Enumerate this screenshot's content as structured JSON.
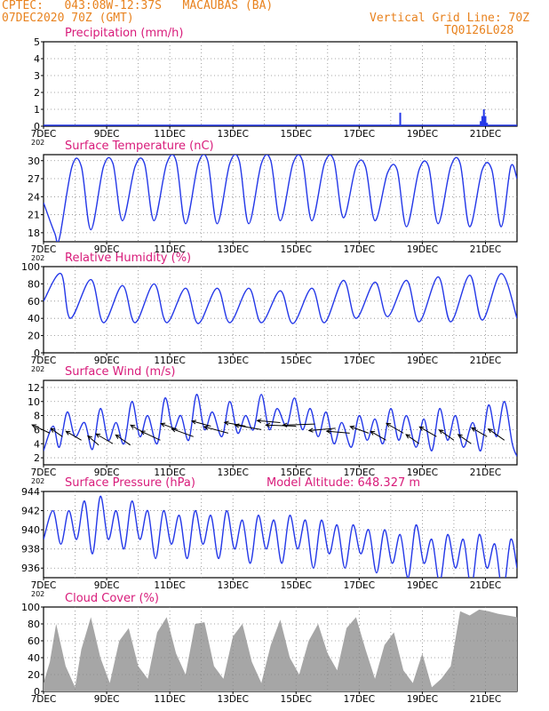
{
  "header": {
    "line1": "CPTEC:   043:08W-12:37S   MACAUBAS (BA)",
    "line2": "07DEC2020 70Z (GMT)",
    "grid_note": "Vertical Grid Line: 70Z",
    "code": "TQ0126L028"
  },
  "colors": {
    "header": "#e8821e",
    "title": "#d81b7a",
    "line": "#2438e8",
    "cloud": "#a6a6a6",
    "arrow": "#000000"
  },
  "x_tick_labels": [
    "7DEC",
    "9DEC",
    "11DEC",
    "13DEC",
    "15DEC",
    "17DEC",
    "19DEC",
    "21DEC"
  ],
  "x_stub_label": "202",
  "chart_data": [
    {
      "id": "precip",
      "type": "bar",
      "title": "Precipitation (mm/h)",
      "xlim": [
        0,
        15
      ],
      "ylim": [
        0,
        5
      ],
      "yticks": [
        0,
        1,
        2,
        3,
        4,
        5
      ],
      "grid": true,
      "x": [
        11.3,
        13.85,
        13.9,
        13.95,
        14.0,
        14.05
      ],
      "values": [
        0.8,
        0.3,
        0.6,
        1.0,
        0.6,
        0.2
      ]
    },
    {
      "id": "temp",
      "type": "line",
      "title": "Surface Temperature (nC)",
      "xlim": [
        0,
        15
      ],
      "ylim": [
        16.5,
        31
      ],
      "yticks": [
        18,
        21,
        24,
        27,
        30
      ],
      "grid": true,
      "x": [
        0,
        0.35,
        0.5,
        0.9,
        1.2,
        1.5,
        1.9,
        2.2,
        2.5,
        2.9,
        3.2,
        3.5,
        3.9,
        4.2,
        4.5,
        4.9,
        5.2,
        5.5,
        5.9,
        6.2,
        6.5,
        6.9,
        7.2,
        7.5,
        7.9,
        8.2,
        8.5,
        8.9,
        9.2,
        9.5,
        9.9,
        10.2,
        10.5,
        10.9,
        11.2,
        11.5,
        11.9,
        12.2,
        12.5,
        12.9,
        13.2,
        13.5,
        13.9,
        14.2,
        14.5,
        14.8,
        15
      ],
      "values": [
        23,
        18,
        17,
        29,
        29,
        18.5,
        29,
        29.5,
        20,
        29,
        29.5,
        20,
        29.5,
        30,
        19.5,
        29.5,
        30,
        19.5,
        29.5,
        30,
        19.5,
        29.5,
        30,
        20,
        29.5,
        30,
        20,
        29.5,
        30,
        20.5,
        29,
        29,
        20,
        28,
        28.5,
        19,
        28.5,
        29,
        19.5,
        29,
        29.5,
        19,
        28.5,
        28.5,
        19,
        29,
        27
      ]
    },
    {
      "id": "rh",
      "type": "line",
      "title": "Relative Humidity (%)",
      "xlim": [
        0,
        15
      ],
      "ylim": [
        0,
        100
      ],
      "yticks": [
        0,
        20,
        40,
        60,
        80,
        100
      ],
      "grid": true,
      "x": [
        0,
        0.55,
        0.85,
        1.5,
        1.9,
        2.5,
        2.9,
        3.5,
        3.9,
        4.5,
        4.9,
        5.5,
        5.9,
        6.5,
        6.9,
        7.5,
        7.9,
        8.5,
        8.9,
        9.5,
        9.9,
        10.5,
        10.9,
        11.5,
        11.9,
        12.5,
        12.9,
        13.5,
        13.9,
        14.5,
        15
      ],
      "values": [
        60,
        92,
        40,
        85,
        35,
        78,
        35,
        80,
        35,
        75,
        34,
        75,
        35,
        75,
        35,
        72,
        34,
        75,
        35,
        84,
        40,
        82,
        42,
        84,
        36,
        88,
        36,
        90,
        38,
        92,
        40
      ]
    },
    {
      "id": "wind",
      "type": "line",
      "title": "Surface Wind (m/s)",
      "xlim": [
        0,
        15
      ],
      "ylim": [
        1,
        13
      ],
      "yticks": [
        2,
        4,
        6,
        8,
        10,
        12
      ],
      "grid": true,
      "x": [
        0,
        0.3,
        0.5,
        0.75,
        1.0,
        1.3,
        1.55,
        1.8,
        2.05,
        2.3,
        2.55,
        2.8,
        3.05,
        3.3,
        3.6,
        3.85,
        4.1,
        4.35,
        4.6,
        4.85,
        5.1,
        5.35,
        5.65,
        5.9,
        6.15,
        6.4,
        6.65,
        6.9,
        7.15,
        7.4,
        7.7,
        7.95,
        8.2,
        8.45,
        8.7,
        8.95,
        9.2,
        9.45,
        9.75,
        10.0,
        10.25,
        10.5,
        10.75,
        11.0,
        11.25,
        11.5,
        11.8,
        12.05,
        12.3,
        12.55,
        12.8,
        13.05,
        13.3,
        13.6,
        13.85,
        14.1,
        14.35,
        14.6,
        14.85,
        15
      ],
      "values": [
        3,
        6.5,
        3.5,
        8.5,
        5,
        7,
        3.2,
        9,
        4.5,
        7,
        4,
        10,
        5,
        8,
        4,
        10.5,
        6,
        8,
        4.5,
        11,
        6,
        8.5,
        5,
        10,
        5.5,
        8,
        6,
        11,
        6,
        9,
        6.5,
        10.5,
        6,
        9,
        5,
        8.5,
        4,
        7,
        3.5,
        8,
        4.5,
        7.5,
        4,
        9,
        4.5,
        8,
        3.5,
        7.5,
        3,
        9,
        4.5,
        8,
        3.5,
        7,
        3,
        9.5,
        5,
        10,
        4,
        2.2
      ],
      "arrows": [
        {
          "x": 0.2,
          "v": 5.5,
          "len": 22,
          "ang": 205
        },
        {
          "x": 0.6,
          "v": 5.0,
          "len": 16,
          "ang": 215
        },
        {
          "x": 1.2,
          "v": 4.5,
          "len": 20,
          "ang": 210
        },
        {
          "x": 1.75,
          "v": 3.8,
          "len": 16,
          "ang": 220
        },
        {
          "x": 2.2,
          "v": 4.0,
          "len": 22,
          "ang": 210
        },
        {
          "x": 2.75,
          "v": 3.8,
          "len": 20,
          "ang": 215
        },
        {
          "x": 3.2,
          "v": 5.5,
          "len": 18,
          "ang": 210
        },
        {
          "x": 3.7,
          "v": 4.5,
          "len": 24,
          "ang": 205
        },
        {
          "x": 4.25,
          "v": 6.0,
          "len": 20,
          "ang": 200
        },
        {
          "x": 4.75,
          "v": 5.0,
          "len": 26,
          "ang": 200
        },
        {
          "x": 5.3,
          "v": 6.5,
          "len": 22,
          "ang": 195
        },
        {
          "x": 5.85,
          "v": 5.5,
          "len": 28,
          "ang": 195
        },
        {
          "x": 6.4,
          "v": 6.5,
          "len": 24,
          "ang": 190
        },
        {
          "x": 6.9,
          "v": 6.0,
          "len": 30,
          "ang": 190
        },
        {
          "x": 7.5,
          "v": 7.0,
          "len": 26,
          "ang": 185
        },
        {
          "x": 8.0,
          "v": 6.5,
          "len": 34,
          "ang": 182
        },
        {
          "x": 8.6,
          "v": 6.8,
          "len": 36,
          "ang": 178
        },
        {
          "x": 9.25,
          "v": 6.2,
          "len": 30,
          "ang": 175
        },
        {
          "x": 9.7,
          "v": 5.5,
          "len": 26,
          "ang": 185
        },
        {
          "x": 10.3,
          "v": 5.5,
          "len": 22,
          "ang": 200
        },
        {
          "x": 10.85,
          "v": 4.5,
          "len": 20,
          "ang": 210
        },
        {
          "x": 11.4,
          "v": 5.5,
          "len": 22,
          "ang": 210
        },
        {
          "x": 11.9,
          "v": 4.0,
          "len": 18,
          "ang": 215
        },
        {
          "x": 12.45,
          "v": 5.0,
          "len": 22,
          "ang": 210
        },
        {
          "x": 13.0,
          "v": 4.5,
          "len": 20,
          "ang": 215
        },
        {
          "x": 13.55,
          "v": 4.0,
          "len": 18,
          "ang": 215
        },
        {
          "x": 14.05,
          "v": 5.0,
          "len": 20,
          "ang": 210
        },
        {
          "x": 14.6,
          "v": 4.5,
          "len": 22,
          "ang": 215
        }
      ]
    },
    {
      "id": "pres",
      "type": "line",
      "title": "Surface Pressure (hPa)",
      "extra_label": "Model Altitude: 648.327 m",
      "xlim": [
        0,
        15
      ],
      "ylim": [
        935,
        944
      ],
      "yticks": [
        936,
        938,
        940,
        942,
        944
      ],
      "grid": true,
      "x": [
        0,
        0.3,
        0.55,
        0.8,
        1.05,
        1.3,
        1.55,
        1.8,
        2.05,
        2.3,
        2.55,
        2.8,
        3.05,
        3.3,
        3.55,
        3.8,
        4.05,
        4.3,
        4.55,
        4.8,
        5.05,
        5.3,
        5.55,
        5.8,
        6.05,
        6.3,
        6.55,
        6.8,
        7.05,
        7.3,
        7.55,
        7.8,
        8.05,
        8.3,
        8.55,
        8.8,
        9.05,
        9.3,
        9.55,
        9.8,
        10.05,
        10.3,
        10.55,
        10.8,
        11.05,
        11.3,
        11.55,
        11.8,
        12.05,
        12.3,
        12.55,
        12.8,
        13.05,
        13.3,
        13.55,
        13.8,
        14.05,
        14.3,
        14.55,
        14.8,
        15
      ],
      "values": [
        939,
        942,
        938.5,
        942,
        939,
        943,
        937.5,
        943.5,
        939,
        942,
        938,
        943,
        939,
        942,
        937,
        942,
        938.5,
        941.5,
        937,
        942,
        938.5,
        941.5,
        937,
        942,
        938,
        941,
        936.5,
        941.5,
        938,
        941,
        936.5,
        941.5,
        938,
        941,
        936,
        941,
        937.5,
        940.5,
        936,
        940.5,
        937.5,
        940,
        935.5,
        940,
        936.5,
        939.5,
        935,
        940.5,
        936.5,
        939,
        934.5,
        939.5,
        936,
        939,
        934,
        939.5,
        936,
        938.5,
        933.5,
        939,
        936
      ]
    },
    {
      "id": "cloud",
      "type": "area",
      "title": "Cloud Cover (%)",
      "xlim": [
        0,
        15
      ],
      "ylim": [
        0,
        100
      ],
      "yticks": [
        0,
        20,
        40,
        60,
        80,
        100
      ],
      "grid": true,
      "x": [
        0,
        0.2,
        0.4,
        0.7,
        1.0,
        1.2,
        1.5,
        1.8,
        2.1,
        2.4,
        2.7,
        3.0,
        3.3,
        3.6,
        3.9,
        4.2,
        4.5,
        4.8,
        5.1,
        5.4,
        5.7,
        6.0,
        6.3,
        6.6,
        6.9,
        7.2,
        7.5,
        7.8,
        8.1,
        8.4,
        8.7,
        9.0,
        9.3,
        9.6,
        9.9,
        10.2,
        10.5,
        10.8,
        11.1,
        11.4,
        11.7,
        12.0,
        12.3,
        12.6,
        12.9,
        13.2,
        13.5,
        13.8,
        14.1,
        14.4,
        14.7,
        15
      ],
      "values": [
        10,
        35,
        80,
        30,
        5,
        50,
        88,
        40,
        10,
        60,
        75,
        30,
        15,
        70,
        88,
        45,
        20,
        80,
        82,
        30,
        15,
        65,
        80,
        35,
        10,
        55,
        85,
        40,
        20,
        60,
        80,
        45,
        25,
        75,
        88,
        50,
        15,
        55,
        70,
        25,
        10,
        45,
        5,
        15,
        30,
        95,
        90,
        97,
        95,
        92,
        90,
        88
      ]
    }
  ]
}
